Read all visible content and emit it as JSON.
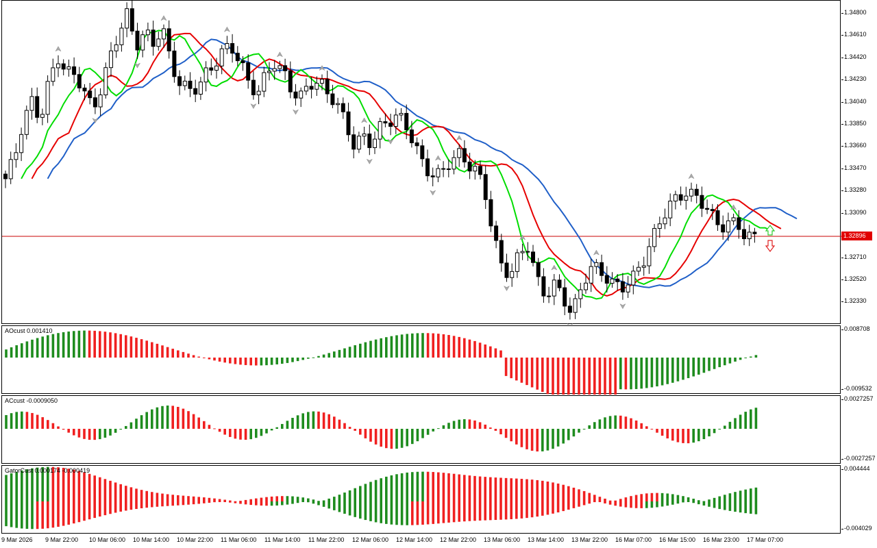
{
  "chart": {
    "symbol_price_axis": [
      "1.34800",
      "1.34610",
      "1.34420",
      "1.34230",
      "1.34040",
      "1.33850",
      "1.33660",
      "1.33470",
      "1.33280",
      "1.33090",
      "1.32710",
      "1.32520",
      "1.32330"
    ],
    "current_price": "1.32896",
    "time_labels": [
      "9 Mar 2026",
      "9 Mar 22:00",
      "10 Mar 06:00",
      "10 Mar 14:00",
      "10 Mar 22:00",
      "11 Mar 06:00",
      "11 Mar 14:00",
      "11 Mar 22:00",
      "12 Mar 06:00",
      "12 Mar 14:00",
      "12 Mar 22:00",
      "13 Mar 06:00",
      "13 Mar 14:00",
      "13 Mar 22:00",
      "16 Mar 07:00",
      "16 Mar 15:00",
      "16 Mar 23:00",
      "17 Mar 07:00"
    ]
  },
  "indicators": {
    "ao": {
      "label": "AOcust 0.001410",
      "max": "0.008708",
      "min": "-0.009532"
    },
    "ac": {
      "label": "ACcust -0.0009050",
      "max": "0.0027257",
      "min": "-0.0027257"
    },
    "gator": {
      "label": "GatorCust 0.000174 -0.000419",
      "max": "0.004444",
      "min": "-0.004029"
    }
  },
  "colors": {
    "jaw": "#1f5fc8",
    "teeth": "#e60000",
    "lips": "#00dd00",
    "up_bar": "#1e8c1e",
    "down_bar": "#f02020",
    "price_line": "#c80000"
  },
  "icons": [
    "fractal-up-icon",
    "fractal-down-icon",
    "arrow-up-icon",
    "arrow-down-icon"
  ],
  "chart_data": {
    "type": "candlestick",
    "price_range": [
      1.3214,
      1.349
    ],
    "close_path": [
      1.3335,
      1.3355,
      1.339,
      1.3405,
      1.3385,
      1.342,
      1.3445,
      1.343,
      1.3425,
      1.341,
      1.34,
      1.3418,
      1.344,
      1.346,
      1.348,
      1.3455,
      1.3462,
      1.345,
      1.3468,
      1.344,
      1.342,
      1.341,
      1.3415,
      1.343,
      1.3438,
      1.3445,
      1.3448,
      1.344,
      1.342,
      1.341,
      1.3425,
      1.344,
      1.343,
      1.341,
      1.3405,
      1.342,
      1.3425,
      1.341,
      1.34,
      1.3385,
      1.337,
      1.3375,
      1.3365,
      1.338,
      1.339,
      1.3395,
      1.338,
      1.3365,
      1.335,
      1.3345,
      1.334,
      1.335,
      1.336,
      1.3355,
      1.3345,
      1.3325,
      1.329,
      1.3265,
      1.3258,
      1.327,
      1.328,
      1.3255,
      1.324,
      1.3245,
      1.3235,
      1.3225,
      1.3245,
      1.326,
      1.3258,
      1.3255,
      1.325,
      1.3245,
      1.325,
      1.3265,
      1.3285,
      1.33,
      1.331,
      1.332,
      1.333,
      1.3325,
      1.3315,
      1.3305,
      1.33,
      1.3302,
      1.3298,
      1.3285,
      1.329
    ]
  }
}
